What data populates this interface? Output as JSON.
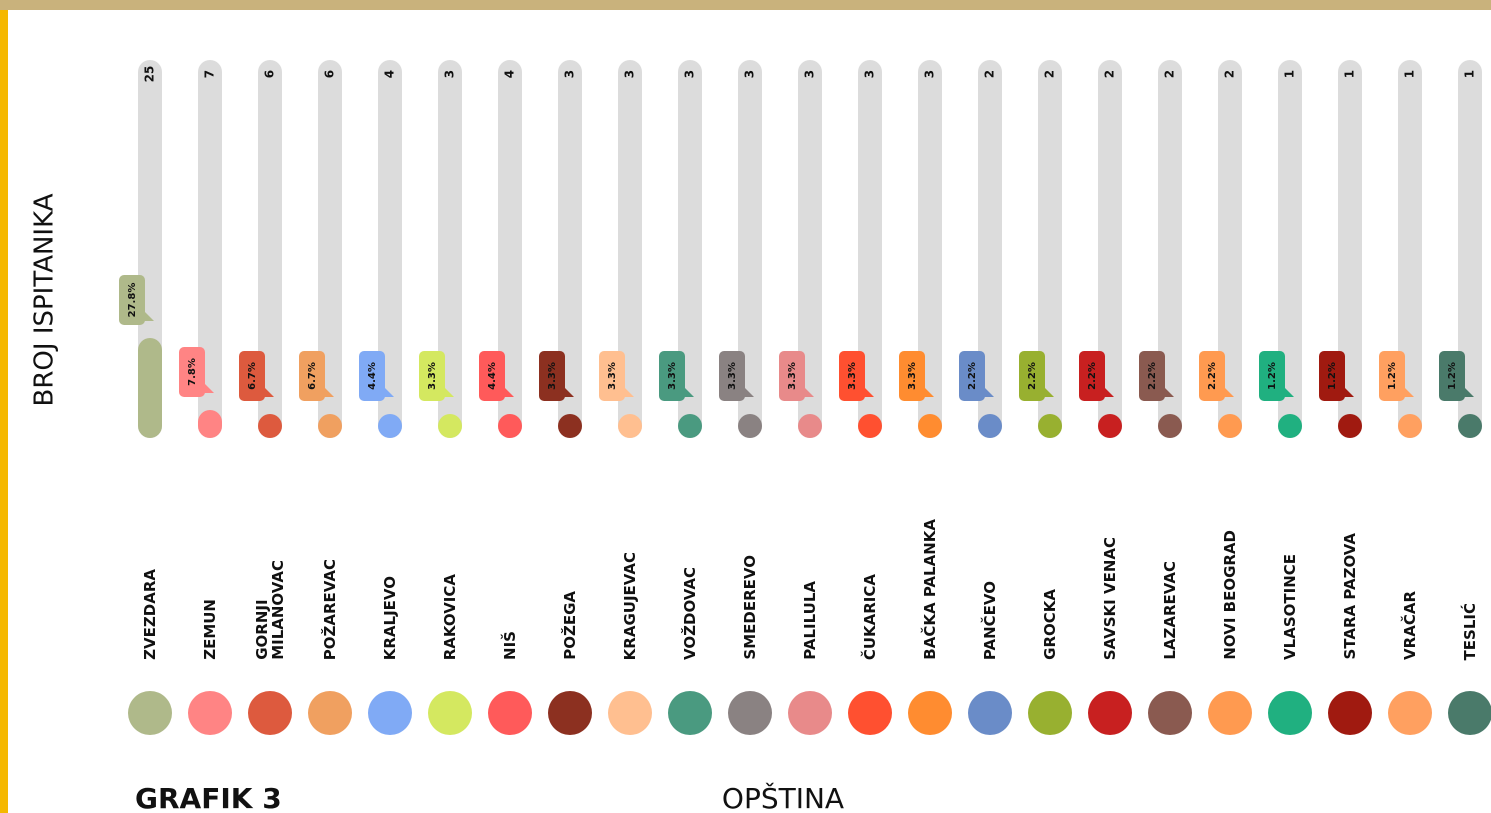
{
  "chart_data": {
    "type": "bar",
    "y_axis_label": "BROJ ISPITANIKA",
    "x_axis_label": "OPŠTINA",
    "caption": "GRAFIK 3",
    "categories": [
      "ZVEZDARA",
      "ZEMUN",
      "GORNJI\nMILANOVAC",
      "POŽAREVAC",
      "KRALJEVO",
      "RAKOVICA",
      "NIŠ",
      "POŽEGA",
      "KRAGUJEVAC",
      "VOŽDOVAC",
      "SMEDEREVO",
      "PALILULA",
      "ČUKARICA",
      "BAČKA PALANKA",
      "PANČEVO",
      "GROCKA",
      "SAVSKI VENAC",
      "LAZAREVAC",
      "NOVI BEOGRAD",
      "VLASOTINCE",
      "STARA PAZOVA",
      "VRAČAR",
      "TESLIĆ"
    ],
    "values": [
      25,
      7,
      6,
      6,
      4,
      3,
      4,
      3,
      3,
      3,
      3,
      3,
      3,
      3,
      2,
      2,
      2,
      2,
      2,
      1,
      1,
      1,
      1
    ],
    "shares": [
      27.8,
      7.8,
      6.7,
      6.7,
      4.4,
      3.3,
      4.4,
      3.3,
      3.3,
      3.3,
      3.3,
      3.3,
      3.3,
      3.3,
      2.2,
      2.2,
      2.2,
      2.2,
      2.2,
      1.2,
      1.2,
      1.2,
      1.2
    ],
    "share_labels": [
      "27.8%",
      "7.8%",
      "6.7%",
      "6.7%",
      "4.4%",
      "3.3%",
      "4.4%",
      "3.3%",
      "3.3%",
      "3.3%",
      "3.3%",
      "3.3%",
      "3.3%",
      "3.3%",
      "2.2%",
      "2.2%",
      "2.2%",
      "2.2%",
      "2.2%",
      "1.2%",
      "1.2%",
      "1.2%",
      "1.2%"
    ],
    "colors": [
      "#afb98a",
      "#ff8484",
      "#dd5a3e",
      "#f0a060",
      "#80aaf5",
      "#d4e860",
      "#ff5a5a",
      "#8c3020",
      "#ffbf90",
      "#4a9a80",
      "#8a8282",
      "#e88a8a",
      "#ff5030",
      "#ff8c30",
      "#6a8cc8",
      "#98b030",
      "#c82020",
      "#8a5a50",
      "#ff9a50",
      "#20b080",
      "#a01a10",
      "#ffa060",
      "#4a7a6a"
    ]
  }
}
